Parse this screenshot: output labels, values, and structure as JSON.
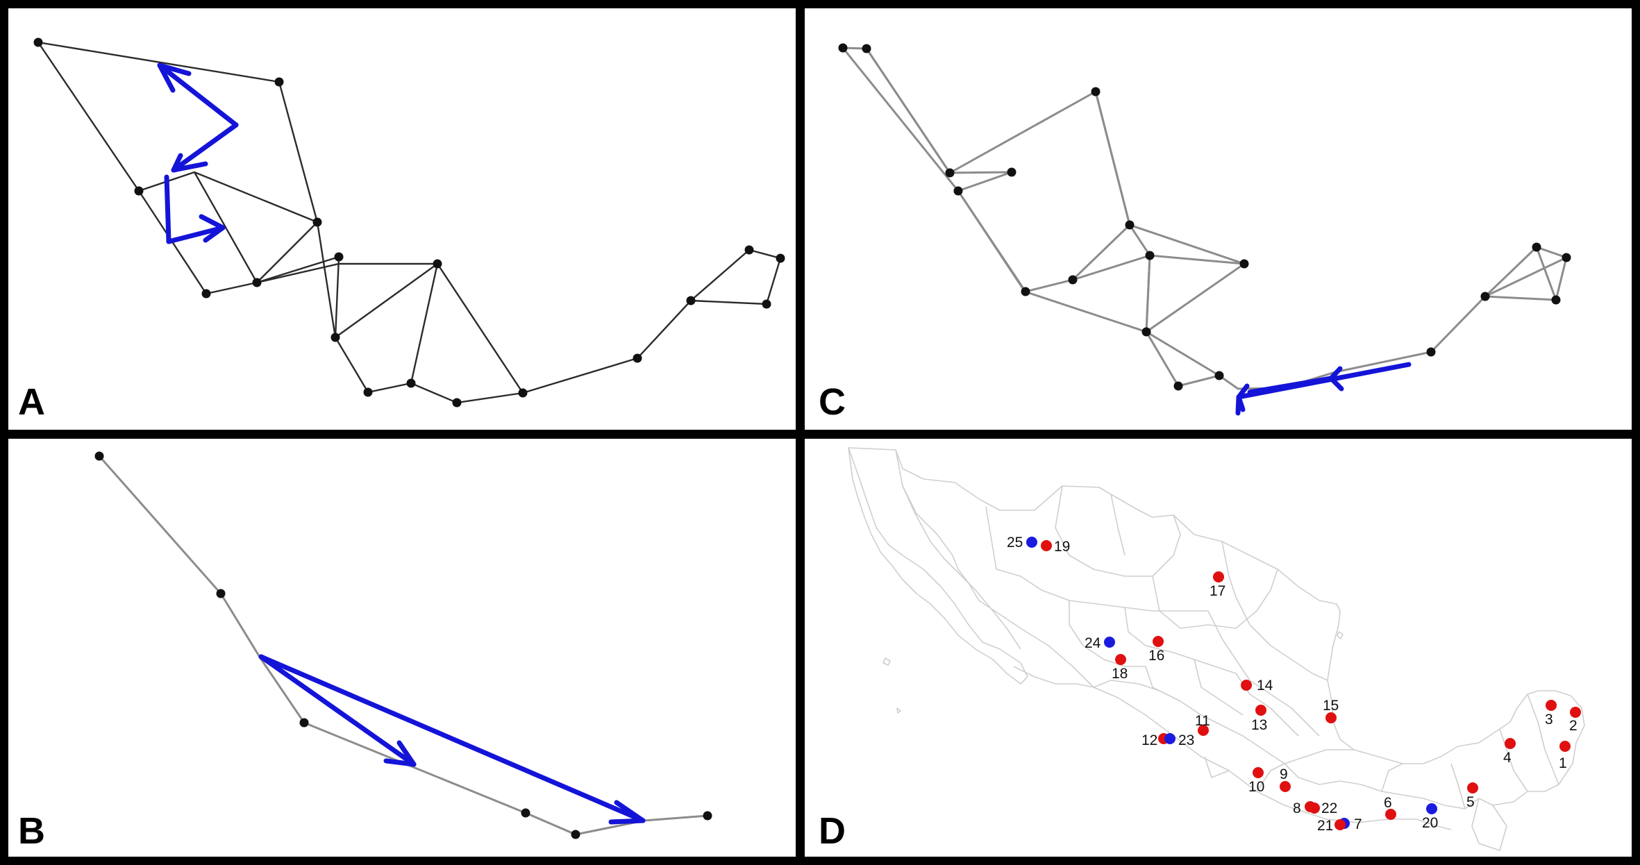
{
  "panels": {
    "a": {
      "letter": "A"
    },
    "b": {
      "letter": "B"
    },
    "c": {
      "letter": "C"
    },
    "d": {
      "letter": "D"
    }
  },
  "map_sites": [
    {
      "label": "1",
      "color": "#e01010"
    },
    {
      "label": "2",
      "color": "#e01010"
    },
    {
      "label": "3",
      "color": "#e01010"
    },
    {
      "label": "4",
      "color": "#e01010"
    },
    {
      "label": "5",
      "color": "#e01010"
    },
    {
      "label": "6",
      "color": "#e01010"
    },
    {
      "label": "7",
      "color": "#1b1be0"
    },
    {
      "label": "8",
      "color": "#e01010"
    },
    {
      "label": "9",
      "color": "#e01010"
    },
    {
      "label": "10",
      "color": "#e01010"
    },
    {
      "label": "11",
      "color": "#e01010"
    },
    {
      "label": "12",
      "color": "#e01010"
    },
    {
      "label": "13",
      "color": "#e01010"
    },
    {
      "label": "14",
      "color": "#e01010"
    },
    {
      "label": "15",
      "color": "#e01010"
    },
    {
      "label": "16",
      "color": "#e01010"
    },
    {
      "label": "17",
      "color": "#e01010"
    },
    {
      "label": "18",
      "color": "#e01010"
    },
    {
      "label": "19",
      "color": "#e01010"
    },
    {
      "label": "20",
      "color": "#1b1be0"
    },
    {
      "label": "21",
      "color": "#e01010"
    },
    {
      "label": "22",
      "color": "#e01010"
    },
    {
      "label": "23",
      "color": "#1b1be0"
    },
    {
      "label": "24",
      "color": "#1b1be0"
    },
    {
      "label": "25",
      "color": "#1b1be0"
    }
  ],
  "colors": {
    "arrow": "#1414d8",
    "frame": "#000000",
    "node": "#111111"
  }
}
